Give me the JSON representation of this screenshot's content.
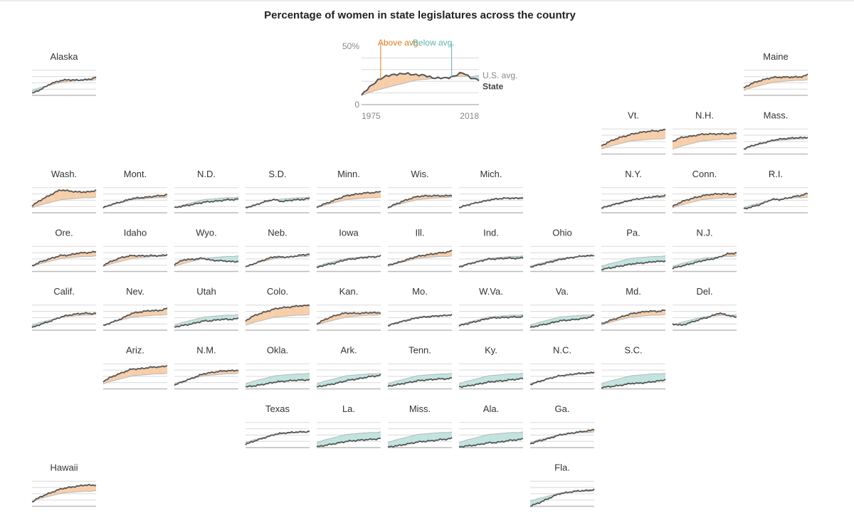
{
  "chart_data": {
    "type": "area",
    "title": "Percentage of women in state legislatures across the country",
    "x_range": [
      1975,
      2018
    ],
    "y_range": [
      0,
      50
    ],
    "legend": {
      "above_label": "Above avg.",
      "below_label": "Below avg.",
      "avg_label": "U.S. avg.",
      "state_label": "State",
      "y_top_label": "50%",
      "y_bottom_label": "0",
      "x_start_label": "1975",
      "x_end_label": "2018"
    },
    "colors": {
      "above": "#f7cda7",
      "below": "#bfe3de",
      "state_line": "#555555",
      "avg_line": "#b8b8b8",
      "above_text": "#e07b1e",
      "below_text": "#5bb5ab",
      "grid": "#d9d9d9",
      "baseline": "#bbbbbb"
    },
    "us_avg": {
      "years": [
        1975,
        1980,
        1985,
        1990,
        1995,
        2000,
        2005,
        2010,
        2015,
        2018
      ],
      "values": [
        8,
        12,
        15,
        18,
        21,
        22,
        23,
        24,
        24,
        25
      ]
    },
    "states": [
      {
        "name": "Alaska",
        "row": 0,
        "col": 0,
        "offset": [
          -5,
          -3,
          2,
          3,
          3,
          1,
          1,
          4
        ]
      },
      {
        "name": "Maine",
        "row": 0,
        "col": 10,
        "offset": [
          4,
          7,
          8,
          8,
          7,
          6,
          5,
          8
        ]
      },
      {
        "name": "Vt.",
        "row": 1,
        "col": 8,
        "offset": [
          5,
          8,
          10,
          10,
          12,
          13,
          13,
          14
        ]
      },
      {
        "name": "N.H.",
        "row": 1,
        "col": 9,
        "offset": [
          12,
          14,
          12,
          11,
          10,
          9,
          8,
          9
        ]
      },
      {
        "name": "Mass.",
        "row": 1,
        "col": 10,
        "offset": [
          0,
          1,
          1,
          1,
          2,
          2,
          2,
          2
        ]
      },
      {
        "name": "Wash.",
        "row": 2,
        "col": 0,
        "offset": [
          3,
          8,
          12,
          16,
          13,
          10,
          9,
          11
        ]
      },
      {
        "name": "Mont.",
        "row": 2,
        "col": 1,
        "offset": [
          0,
          1,
          1,
          2,
          2,
          2,
          3,
          4
        ]
      },
      {
        "name": "N.D.",
        "row": 2,
        "col": 2,
        "offset": [
          0,
          -2,
          -3,
          -4,
          -4,
          -4,
          -3,
          -3
        ]
      },
      {
        "name": "S.D.",
        "row": 2,
        "col": 3,
        "offset": [
          0,
          -1,
          1,
          1,
          -4,
          -3,
          -3,
          -2
        ]
      },
      {
        "name": "Minn.",
        "row": 2,
        "col": 4,
        "offset": [
          1,
          2,
          4,
          6,
          7,
          8,
          8,
          9
        ]
      },
      {
        "name": "Wis.",
        "row": 2,
        "col": 5,
        "offset": [
          0,
          2,
          4,
          5,
          5,
          4,
          3,
          3
        ]
      },
      {
        "name": "Mich.",
        "row": 2,
        "col": 6,
        "offset": [
          0,
          0,
          0,
          -1,
          0,
          0,
          -1,
          -1
        ]
      },
      {
        "name": "N.Y.",
        "row": 2,
        "col": 8,
        "offset": [
          -1,
          -1,
          -1,
          -1,
          0,
          1,
          2,
          3
        ]
      },
      {
        "name": "Conn.",
        "row": 2,
        "col": 9,
        "offset": [
          2,
          5,
          6,
          6,
          7,
          7,
          6,
          5
        ]
      },
      {
        "name": "R.I.",
        "row": 2,
        "col": 10,
        "offset": [
          -2,
          -3,
          -2,
          1,
          -1,
          1,
          3,
          6
        ]
      },
      {
        "name": "Ore.",
        "row": 3,
        "col": 0,
        "offset": [
          1,
          3,
          4,
          5,
          4,
          6,
          6,
          7
        ]
      },
      {
        "name": "Idaho",
        "row": 3,
        "col": 1,
        "offset": [
          2,
          4,
          6,
          5,
          3,
          2,
          1,
          2
        ]
      },
      {
        "name": "Wyo.",
        "row": 3,
        "col": 2,
        "offset": [
          3,
          6,
          3,
          1,
          -4,
          -6,
          -8,
          -9
        ]
      },
      {
        "name": "Neb.",
        "row": 3,
        "col": 3,
        "offset": [
          -1,
          0,
          2,
          3,
          1,
          0,
          2,
          3
        ]
      },
      {
        "name": "Iowa",
        "row": 3,
        "col": 4,
        "offset": [
          -2,
          -2,
          -3,
          -2,
          -2,
          -1,
          -1,
          0
        ]
      },
      {
        "name": "Ill.",
        "row": 3,
        "col": 5,
        "offset": [
          2,
          1,
          2,
          3,
          4,
          5,
          6,
          8
        ]
      },
      {
        "name": "Ind.",
        "row": 3,
        "col": 6,
        "offset": [
          -1,
          -1,
          -1,
          -1,
          -2,
          -2,
          -3,
          -3
        ]
      },
      {
        "name": "Ohio",
        "row": 3,
        "col": 7,
        "offset": [
          -1,
          -2,
          -2,
          -2,
          -1,
          0,
          1,
          1
        ]
      },
      {
        "name": "Pa.",
        "row": 3,
        "col": 8,
        "offset": [
          -5,
          -7,
          -8,
          -9,
          -9,
          -9,
          -8,
          -8
        ]
      },
      {
        "name": "N.J.",
        "row": 3,
        "col": 9,
        "offset": [
          -3,
          -4,
          -4,
          -4,
          -3,
          -1,
          4,
          5
        ]
      },
      {
        "name": "Calif.",
        "row": 4,
        "col": 0,
        "offset": [
          -4,
          -3,
          -2,
          0,
          2,
          3,
          3,
          2
        ]
      },
      {
        "name": "Nev.",
        "row": 4,
        "col": 1,
        "offset": [
          -1,
          0,
          2,
          6,
          7,
          8,
          7,
          10
        ]
      },
      {
        "name": "Utah",
        "row": 4,
        "col": 2,
        "offset": [
          -3,
          -5,
          -6,
          -6,
          -7,
          -6,
          -7,
          -6
        ]
      },
      {
        "name": "Colo.",
        "row": 4,
        "col": 3,
        "offset": [
          7,
          11,
          12,
          13,
          14,
          14,
          15,
          15
        ]
      },
      {
        "name": "Kan.",
        "row": 4,
        "col": 4,
        "offset": [
          2,
          5,
          7,
          7,
          5,
          4,
          4,
          3
        ]
      },
      {
        "name": "Mo.",
        "row": 4,
        "col": 5,
        "offset": [
          -1,
          -1,
          -1,
          -1,
          -1,
          -1,
          -1,
          0
        ]
      },
      {
        "name": "W.Va.",
        "row": 4,
        "col": 6,
        "offset": [
          -1,
          -2,
          -2,
          -2,
          -2,
          -3,
          -3,
          -3
        ]
      },
      {
        "name": "Va.",
        "row": 4,
        "col": 7,
        "offset": [
          -4,
          -5,
          -6,
          -6,
          -6,
          -6,
          -5,
          -1
        ]
      },
      {
        "name": "Md.",
        "row": 4,
        "col": 8,
        "offset": [
          2,
          3,
          4,
          5,
          6,
          7,
          6,
          7
        ]
      },
      {
        "name": "Del.",
        "row": 4,
        "col": 9,
        "offset": [
          2,
          -5,
          -4,
          -3,
          -1,
          4,
          0,
          -4
        ]
      },
      {
        "name": "Ariz.",
        "row": 5,
        "col": 1,
        "offset": [
          4,
          7,
          9,
          11,
          10,
          11,
          11,
          12
        ]
      },
      {
        "name": "N.M.",
        "row": 5,
        "col": 2,
        "offset": [
          -2,
          -1,
          1,
          3,
          4,
          5,
          5,
          5
        ]
      },
      {
        "name": "Okla.",
        "row": 5,
        "col": 3,
        "offset": [
          -5,
          -8,
          -9,
          -10,
          -10,
          -10,
          -10,
          -10
        ]
      },
      {
        "name": "Ark.",
        "row": 5,
        "col": 4,
        "offset": [
          -5,
          -7,
          -8,
          -8,
          -7,
          -6,
          -4,
          -3
        ]
      },
      {
        "name": "Tenn.",
        "row": 5,
        "col": 5,
        "offset": [
          -4,
          -6,
          -7,
          -8,
          -8,
          -8,
          -8,
          -8
        ]
      },
      {
        "name": "Ky.",
        "row": 5,
        "col": 6,
        "offset": [
          -5,
          -8,
          -9,
          -10,
          -10,
          -10,
          -9,
          -8
        ]
      },
      {
        "name": "N.C.",
        "row": 5,
        "col": 7,
        "offset": [
          -1,
          -1,
          0,
          0,
          0,
          1,
          1,
          2
        ]
      },
      {
        "name": "S.C.",
        "row": 5,
        "col": 8,
        "offset": [
          -6,
          -9,
          -11,
          -12,
          -13,
          -13,
          -12,
          -10
        ]
      },
      {
        "name": "Texas",
        "row": 6,
        "col": 3,
        "offset": [
          -3,
          -2,
          -1,
          0,
          1,
          1,
          1,
          1
        ]
      },
      {
        "name": "La.",
        "row": 6,
        "col": 4,
        "offset": [
          -7,
          -9,
          -10,
          -11,
          -11,
          -11,
          -11,
          -10
        ]
      },
      {
        "name": "Miss.",
        "row": 6,
        "col": 5,
        "offset": [
          -7,
          -10,
          -11,
          -12,
          -12,
          -12,
          -11,
          -10
        ]
      },
      {
        "name": "Ala.",
        "row": 6,
        "col": 6,
        "offset": [
          -7,
          -10,
          -12,
          -13,
          -14,
          -13,
          -12,
          -11
        ]
      },
      {
        "name": "Ga.",
        "row": 6,
        "col": 7,
        "offset": [
          -2,
          -2,
          -2,
          -1,
          0,
          1,
          2,
          4
        ]
      },
      {
        "name": "Hawaii",
        "row": 7,
        "col": 0,
        "offset": [
          -1,
          3,
          5,
          7,
          8,
          9,
          10,
          9
        ]
      },
      {
        "name": "Fla.",
        "row": 7,
        "col": 7,
        "offset": [
          -8,
          -7,
          -4,
          -1,
          0,
          1,
          1,
          2
        ]
      }
    ]
  }
}
